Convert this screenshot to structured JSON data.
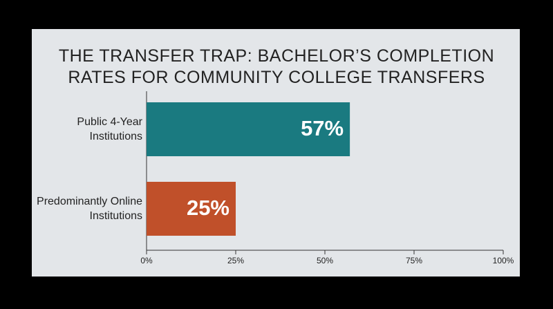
{
  "chart_data": {
    "type": "hbar",
    "title": "THE TRANSFER TRAP: BACHELOR’S COMPLETION RATES FOR COMMUNITY COLLEGE TRANSFERS",
    "categories": [
      "Public 4-Year Institutions",
      "Predominantly Online Institutions"
    ],
    "values": [
      57,
      25
    ],
    "value_labels": [
      "57%",
      "25%"
    ],
    "colors": [
      "#1a7a80",
      "#c0502a"
    ],
    "xlim": [
      0,
      100
    ],
    "xticks": [
      {
        "value": 0,
        "label": "0%"
      },
      {
        "value": 25,
        "label": "25%"
      },
      {
        "value": 50,
        "label": "50%"
      },
      {
        "value": 75,
        "label": "75%"
      },
      {
        "value": 100,
        "label": "100%"
      }
    ]
  }
}
